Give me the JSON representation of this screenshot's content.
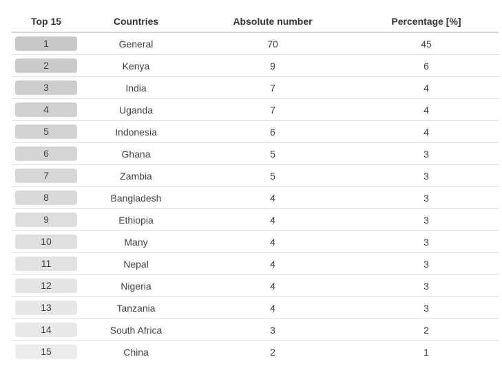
{
  "table": {
    "headers": {
      "rank": "Top 15",
      "country": "Countries",
      "absolute": "Absolute number",
      "percentage": "Percentage [%]"
    },
    "rows": [
      {
        "rank": "1",
        "country": "General",
        "absolute": "70",
        "percentage": "45"
      },
      {
        "rank": "2",
        "country": "Kenya",
        "absolute": "9",
        "percentage": "6"
      },
      {
        "rank": "3",
        "country": "India",
        "absolute": "7",
        "percentage": "4"
      },
      {
        "rank": "4",
        "country": "Uganda",
        "absolute": "7",
        "percentage": "4"
      },
      {
        "rank": "5",
        "country": "Indonesia",
        "absolute": "6",
        "percentage": "4"
      },
      {
        "rank": "6",
        "country": "Ghana",
        "absolute": "5",
        "percentage": "3"
      },
      {
        "rank": "7",
        "country": "Zambia",
        "absolute": "5",
        "percentage": "3"
      },
      {
        "rank": "8",
        "country": "Bangladesh",
        "absolute": "4",
        "percentage": "3"
      },
      {
        "rank": "9",
        "country": "Ethiopia",
        "absolute": "4",
        "percentage": "3"
      },
      {
        "rank": "10",
        "country": "Many",
        "absolute": "4",
        "percentage": "3"
      },
      {
        "rank": "11",
        "country": "Nepal",
        "absolute": "4",
        "percentage": "3"
      },
      {
        "rank": "12",
        "country": "Nigeria",
        "absolute": "4",
        "percentage": "3"
      },
      {
        "rank": "13",
        "country": "Tanzania",
        "absolute": "4",
        "percentage": "3"
      },
      {
        "rank": "14",
        "country": "South Africa",
        "absolute": "3",
        "percentage": "2"
      },
      {
        "rank": "15",
        "country": "China",
        "absolute": "2",
        "percentage": "1"
      }
    ],
    "rank_pill_colors": {
      "darkest": "#c8c8c8",
      "lightest": "#ececec"
    }
  },
  "chart_data": {
    "type": "table",
    "columns": [
      "Top 15",
      "Countries",
      "Absolute number",
      "Percentage [%]"
    ],
    "rows": [
      [
        1,
        "General",
        70,
        45
      ],
      [
        2,
        "Kenya",
        9,
        6
      ],
      [
        3,
        "India",
        7,
        4
      ],
      [
        4,
        "Uganda",
        7,
        4
      ],
      [
        5,
        "Indonesia",
        6,
        4
      ],
      [
        6,
        "Ghana",
        5,
        3
      ],
      [
        7,
        "Zambia",
        5,
        3
      ],
      [
        8,
        "Bangladesh",
        4,
        3
      ],
      [
        9,
        "Ethiopia",
        4,
        3
      ],
      [
        10,
        "Many",
        4,
        3
      ],
      [
        11,
        "Nepal",
        4,
        3
      ],
      [
        12,
        "Nigeria",
        4,
        3
      ],
      [
        13,
        "Tanzania",
        4,
        3
      ],
      [
        14,
        "South Africa",
        3,
        2
      ],
      [
        15,
        "China",
        2,
        1
      ]
    ]
  }
}
